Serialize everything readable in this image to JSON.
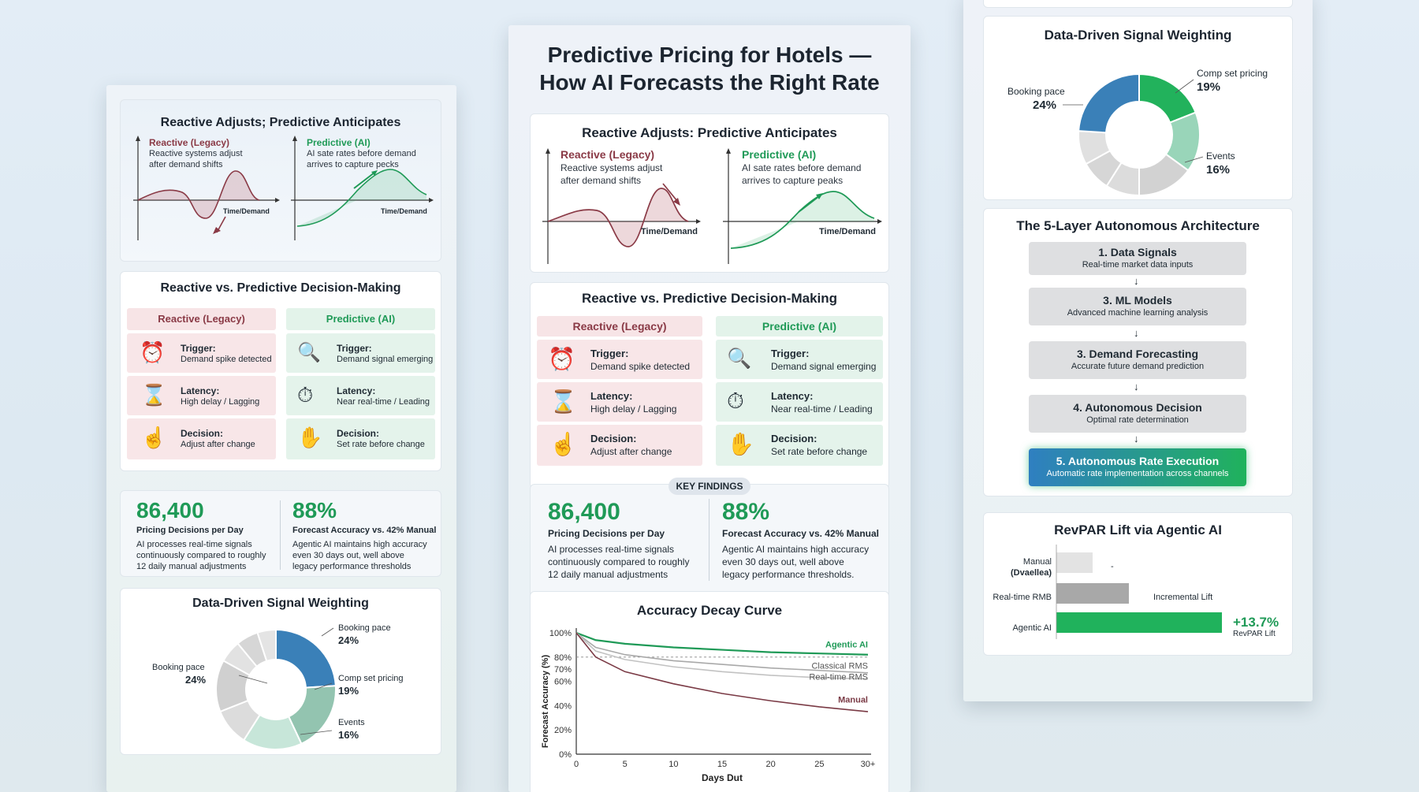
{
  "main_title": {
    "line1": "Predictive Pricing for Hotels —",
    "line2": "How AI Forecasts the Right Rate"
  },
  "left_reactive_card": {
    "title": "Reactive Adjusts; Predictive Anticipates",
    "reactive_label": "Reactive (Legacy)",
    "reactive_desc1": "Reactive systems adjust",
    "reactive_desc2": "after demand shifts",
    "predictive_label": "Predictive (AI)",
    "predictive_desc1": "AI sate rates before demand",
    "predictive_desc2": "arrives to capture pecks",
    "axis_label": "Time/Demand"
  },
  "center_reactive_card": {
    "title": "Reactive Adjusts: Predictive Anticipates",
    "reactive_label": "Reactive (Legacy)",
    "reactive_desc1": "Reactive systems adjust",
    "reactive_desc2": "after demand shifts",
    "predictive_label": "Predictive (AI)",
    "predictive_desc1": "AI sate rates before demand",
    "predictive_desc2": "arrives to capture peaks",
    "axis_label": "Time/Demand"
  },
  "decision_card": {
    "title": "Reactive vs. Predictive Decision-Making",
    "reactive_head": "Reactive (Legacy)",
    "predictive_head": "Predictive (AI)",
    "reactive_rows": [
      {
        "label": "Trigger:",
        "value": "Demand spike detected",
        "icon": "alarm-clock-icon"
      },
      {
        "label": "Latency:",
        "value": "High delay / Lagging",
        "icon": "hourglass-icon"
      },
      {
        "label": "Decision:",
        "value": "Adjust after change",
        "icon": "hand-pointer-icon"
      }
    ],
    "predictive_rows": [
      {
        "label": "Trigger:",
        "value": "Demand signal emerging",
        "icon": "magnifier-pulse-icon"
      },
      {
        "label": "Latency:",
        "value": "Near real-time / Leading",
        "icon": "stopwatch-icon"
      },
      {
        "label": "Decision:",
        "value": "Set rate before change",
        "icon": "robot-hand-icon"
      }
    ]
  },
  "key_findings": {
    "badge": "KEY FINDINGS",
    "stat1": {
      "value": "86,400",
      "label": "Pricing Decisions per Day",
      "desc": [
        "AI processes real-time signals",
        "continuously compared to roughly",
        "12 daily manual adjustments"
      ]
    },
    "stat2": {
      "value": "88%",
      "label": "Forecast Accuracy vs. 42% Manual",
      "desc_center": [
        "Agentic AI maintains high accuracy",
        "even 30 days out, well above",
        "legacy performance thresholds."
      ],
      "desc_left": [
        "Agentic AI maintains high accuracy",
        "even 30 days out, well above",
        "legacy performance thresholds"
      ]
    }
  },
  "signal_weighting": {
    "title": "Data-Driven Signal Weighting",
    "labels": {
      "booking": "Booking pace",
      "booking_pct": "24%",
      "comp": "Comp set pricing",
      "comp_pct": "19%",
      "events": "Events",
      "events_pct": "16%"
    },
    "left_slices": [
      {
        "value": 24,
        "color": "#3a80b8"
      },
      {
        "value": 19,
        "color": "#93c4b0"
      },
      {
        "value": 16,
        "color": "#c7e6d9"
      },
      {
        "value": 10,
        "color": "#dcdcdc"
      },
      {
        "value": 14,
        "color": "#d0d0d0"
      },
      {
        "value": 6,
        "color": "#e2e2e2"
      },
      {
        "value": 6,
        "color": "#d6d6d6"
      },
      {
        "value": 5,
        "color": "#e4e4e4"
      }
    ],
    "right_slices": [
      {
        "value": 19,
        "color": "#22b25c"
      },
      {
        "value": 16,
        "color": "#99d5b9"
      },
      {
        "value": 15,
        "color": "#d2d2d2"
      },
      {
        "value": 9,
        "color": "#dcdcdc"
      },
      {
        "value": 8,
        "color": "#d6d6d6"
      },
      {
        "value": 9,
        "color": "#e0e0e0"
      },
      {
        "value": 24,
        "color": "#3a80b8"
      }
    ]
  },
  "accuracy_curve": {
    "title": "Accuracy Decay Curve",
    "ylabel": "Forecast Accuracy (%)",
    "xlabel": "Days Dut",
    "y_ticks": [
      "100%",
      "80%",
      "70%",
      "60%",
      "40%",
      "20%",
      "0%"
    ],
    "x_ticks": [
      "0",
      "5",
      "10",
      "15",
      "20",
      "25",
      "30+"
    ],
    "series_labels": {
      "agentic": "Agentic AI",
      "classical": "Classical RMS",
      "realtime": "Real-time RMS",
      "manual": "Manual"
    }
  },
  "chart_data": [
    {
      "type": "line",
      "title": "Accuracy Decay Curve",
      "xlabel": "Days Dut",
      "ylabel": "Forecast Accuracy (%)",
      "x": [
        0,
        2,
        5,
        10,
        15,
        20,
        25,
        30
      ],
      "series": [
        {
          "name": "Agentic AI",
          "values": [
            100,
            94,
            91,
            88,
            86,
            84,
            83,
            82
          ],
          "color": "#1f9a57"
        },
        {
          "name": "Classical RMS",
          "values": [
            100,
            88,
            82,
            77,
            74,
            71,
            69,
            67
          ],
          "color": "#a9a9a9"
        },
        {
          "name": "Real-time RMS",
          "values": [
            100,
            85,
            78,
            72,
            68,
            65,
            63,
            62
          ],
          "color": "#c2c2c2"
        },
        {
          "name": "Manual",
          "values": [
            100,
            80,
            68,
            58,
            50,
            44,
            39,
            35
          ],
          "color": "#7a3a45"
        }
      ]
    },
    {
      "type": "bar",
      "title": "RevPAR Lift via Agentic AI",
      "categories": [
        "Manual (Dvaellea)",
        "Real-time RMB",
        "Agentic AI"
      ],
      "values": [
        3,
        6,
        13.7
      ]
    }
  ],
  "architecture": {
    "title": "The 5-Layer Autonomous Architecture",
    "layers": [
      {
        "name": "1. Data Signals",
        "desc": "Real-time market data inputs"
      },
      {
        "name": "3. ML Models",
        "desc": "Advanced machine learning analysis"
      },
      {
        "name": "3. Demand Forecasting",
        "desc": "Accurate future demand prediction"
      },
      {
        "name": "4. Autonomous Decision",
        "desc": "Optimal rate determination"
      },
      {
        "name": "5. Autonomous Rate Execution",
        "desc": "Automatic rate implementation across channels"
      }
    ]
  },
  "revpar": {
    "title": "RevPAR Lift via Agentic AI",
    "manual_label1": "Manual",
    "manual_label2": "(Dvaellea)",
    "manual_note": "-",
    "realtime_label": "Real-time RMB",
    "realtime_note": "Incremental Lift",
    "agentic_label": "Agentic AI",
    "agentic_value": "+13.7%",
    "agentic_note": "RevPAR Lift"
  }
}
